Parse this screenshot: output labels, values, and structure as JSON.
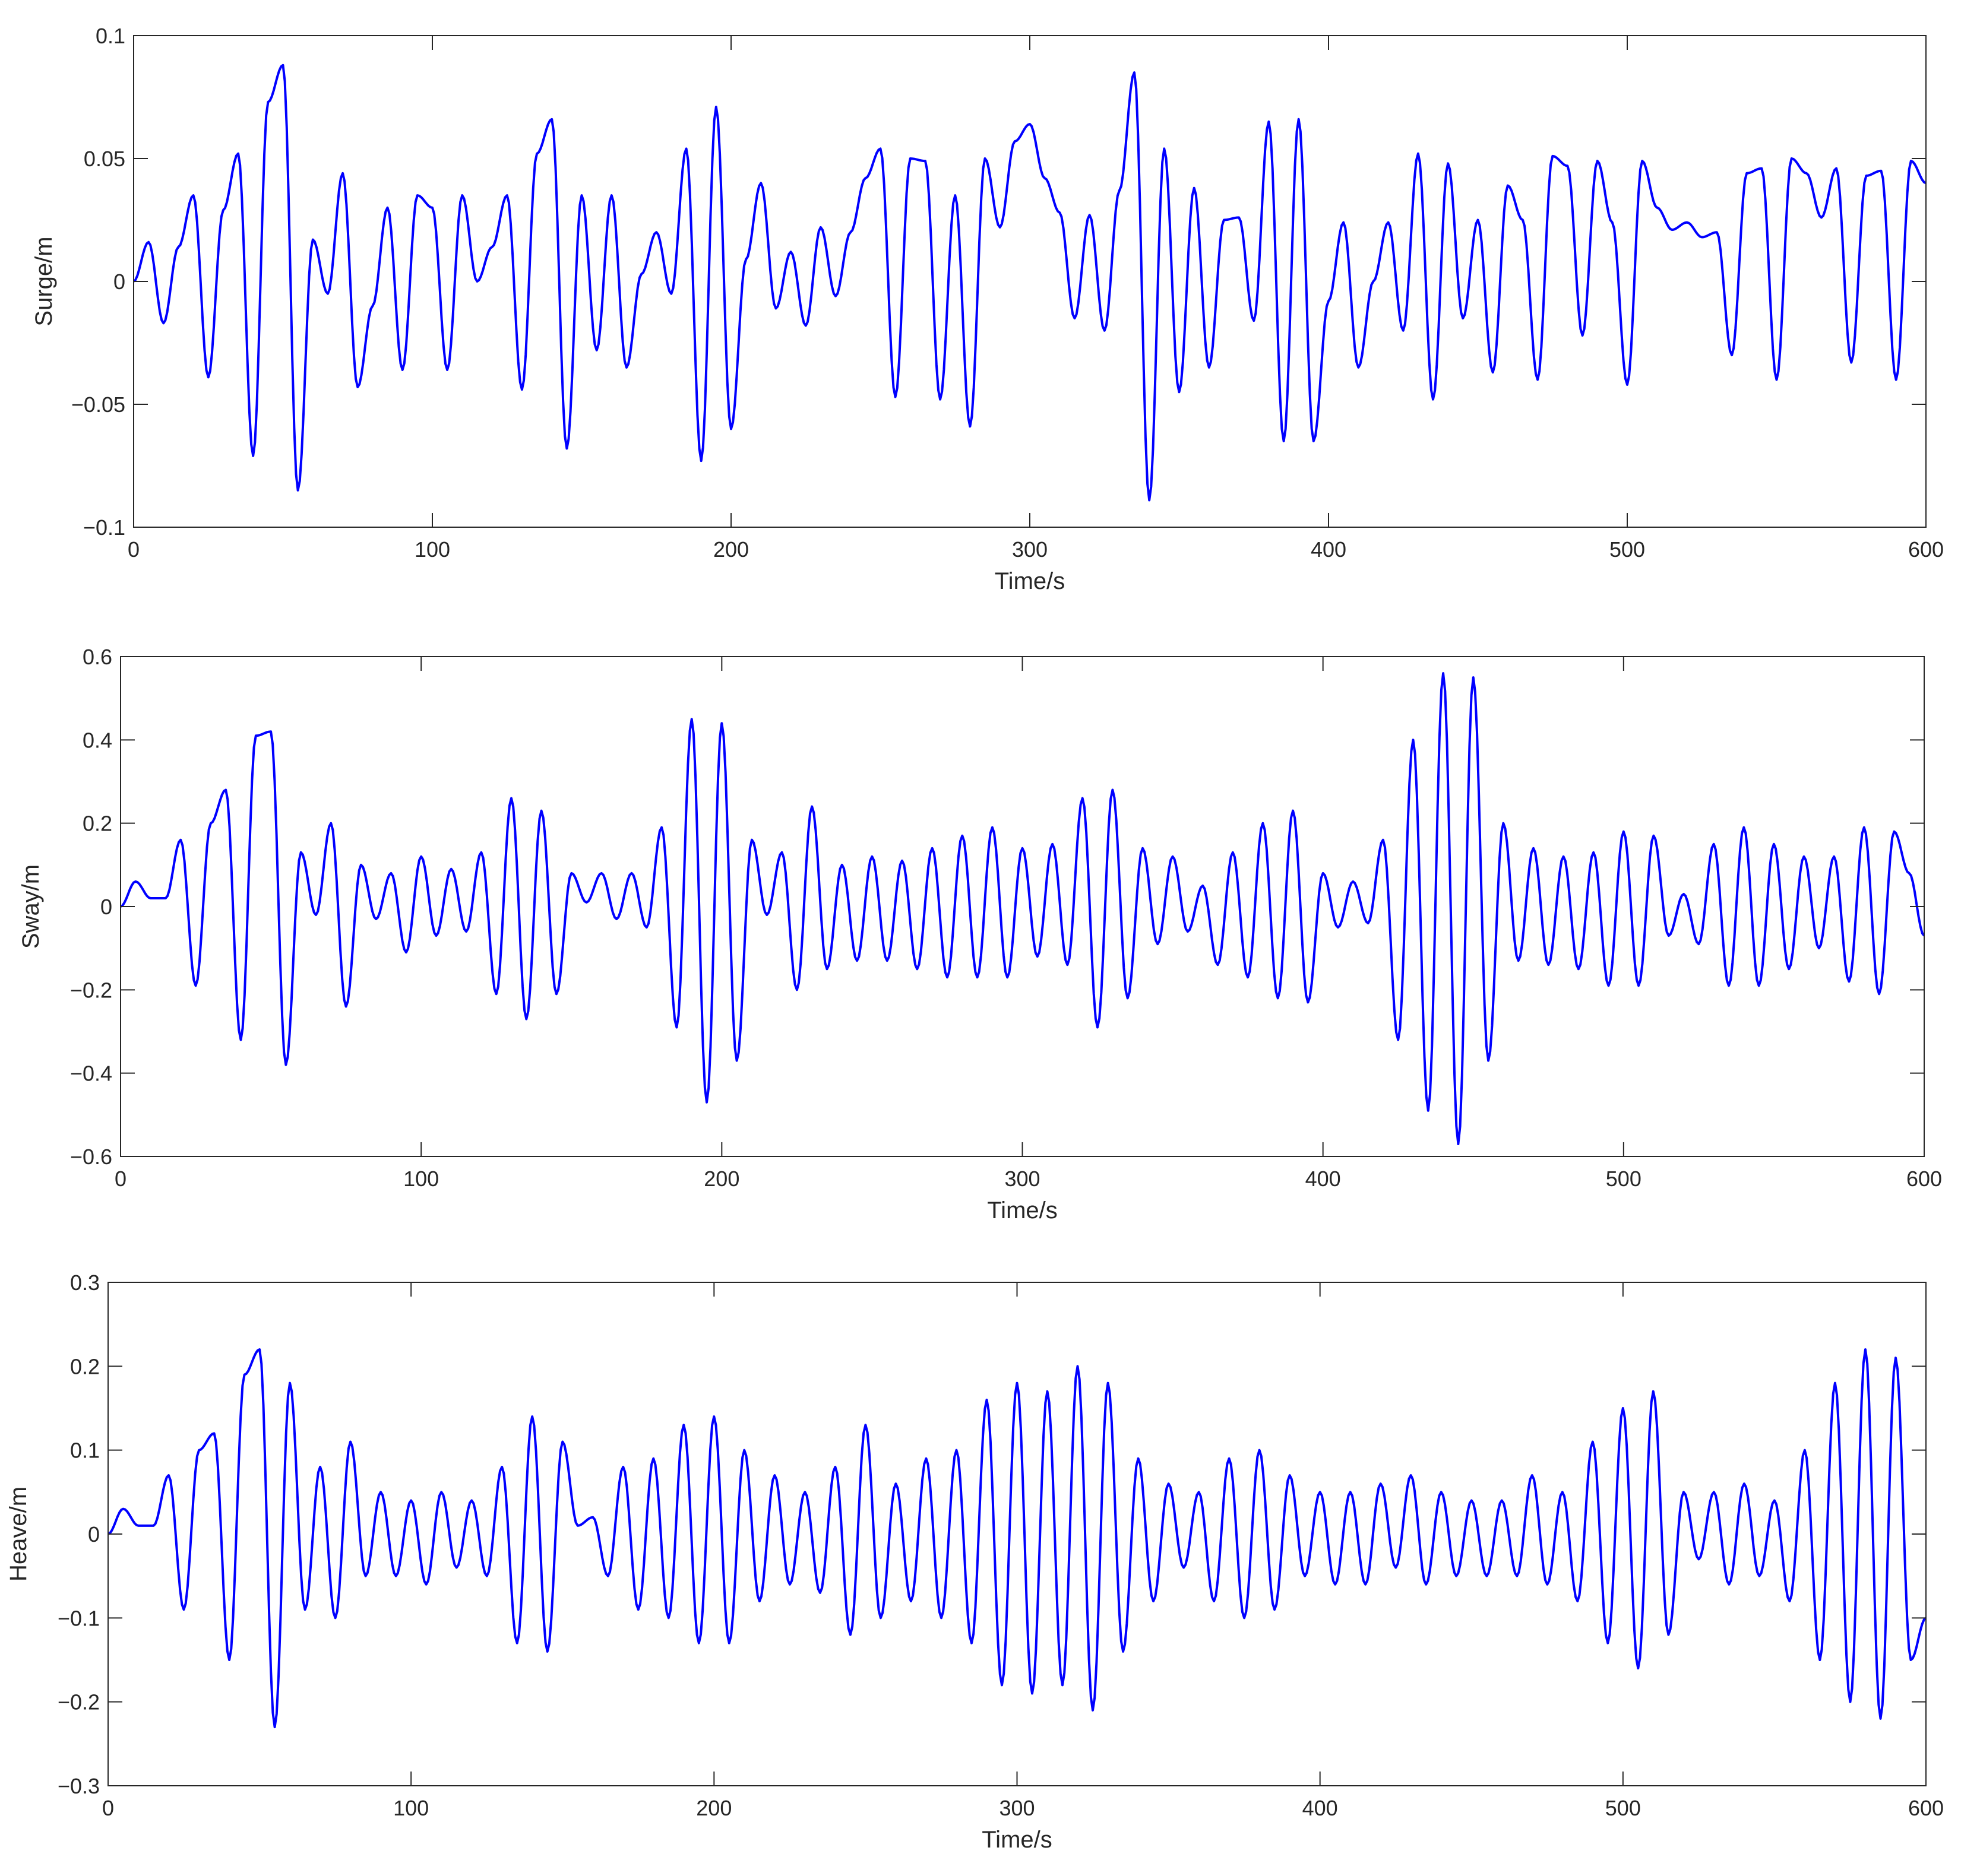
{
  "chart_data": [
    {
      "type": "line",
      "panel": "surge",
      "title": "",
      "xlabel": "Time/s",
      "ylabel": "Surge/m",
      "xlim": [
        0,
        600
      ],
      "ylim": [
        -0.1,
        0.1
      ],
      "xticks": [
        0,
        100,
        200,
        300,
        400,
        500,
        600
      ],
      "xtick_labels": [
        "0",
        "100",
        "200",
        "300",
        "400",
        "500",
        "600"
      ],
      "yticks": [
        -0.1,
        -0.05,
        0,
        0.05,
        0.1
      ],
      "ytick_labels": [
        "−0.1",
        "−0.05",
        "0",
        "0.05",
        "0.1"
      ],
      "grid": false,
      "line_color": "#0000ff",
      "series": [
        {
          "x": [
            0,
            5,
            10,
            15,
            20,
            25,
            30,
            35,
            40,
            45,
            50,
            55,
            60,
            65,
            70,
            75,
            80,
            85,
            90,
            95,
            100,
            105,
            110,
            115,
            120,
            125,
            130,
            135,
            140,
            145,
            150,
            155,
            160,
            165,
            170,
            175,
            180,
            185,
            190,
            195,
            200,
            205,
            210,
            215,
            220,
            225,
            230,
            235,
            240,
            245,
            250,
            255,
            260,
            265,
            270,
            275,
            280,
            285,
            290,
            295,
            300,
            305,
            310,
            315,
            320,
            325,
            330,
            335,
            340,
            345,
            350,
            355,
            360,
            365,
            370,
            375,
            380,
            385,
            390,
            395,
            400,
            405,
            410,
            415,
            420,
            425,
            430,
            435,
            440,
            445,
            450,
            455,
            460,
            465,
            470,
            475,
            480,
            485,
            490,
            495,
            500,
            505,
            510,
            515,
            520,
            525,
            530,
            535,
            540,
            545,
            550,
            555,
            560,
            565,
            570,
            575,
            580,
            585,
            590,
            595,
            600
          ],
          "values": [
            0.0,
            0.016,
            -0.017,
            0.014,
            0.035,
            -0.039,
            0.029,
            0.052,
            -0.071,
            0.073,
            0.088,
            -0.085,
            0.017,
            -0.005,
            0.044,
            -0.043,
            -0.01,
            0.03,
            -0.036,
            0.035,
            0.03,
            -0.036,
            0.035,
            0.0,
            0.014,
            0.035,
            -0.044,
            0.052,
            0.066,
            -0.068,
            0.035,
            -0.028,
            0.035,
            -0.035,
            0.003,
            0.02,
            -0.005,
            0.054,
            -0.073,
            0.071,
            -0.06,
            0.009,
            0.04,
            -0.011,
            0.012,
            -0.018,
            0.022,
            -0.006,
            0.02,
            0.042,
            0.054,
            -0.047,
            0.05,
            0.049,
            -0.048,
            0.035,
            -0.059,
            0.05,
            0.022,
            0.057,
            0.064,
            0.042,
            0.028,
            -0.015,
            0.027,
            -0.02,
            0.037,
            0.085,
            -0.089,
            0.054,
            -0.045,
            0.038,
            -0.035,
            0.025,
            0.026,
            -0.016,
            0.065,
            -0.065,
            0.066,
            -0.065,
            -0.008,
            0.024,
            -0.035,
            0.0,
            0.024,
            -0.02,
            0.052,
            -0.048,
            0.048,
            -0.015,
            0.025,
            -0.037,
            0.039,
            0.025,
            -0.04,
            0.051,
            0.047,
            -0.022,
            0.049,
            0.024,
            -0.042,
            0.049,
            0.03,
            0.021,
            0.024,
            0.018,
            0.02,
            -0.03,
            0.044,
            0.046,
            -0.04,
            0.05,
            0.044,
            0.026,
            0.046,
            -0.033,
            0.043,
            0.045,
            -0.04,
            0.049,
            0.04
          ]
        }
      ]
    },
    {
      "type": "line",
      "panel": "sway",
      "title": "",
      "xlabel": "Time/s",
      "ylabel": "Sway/m",
      "xlim": [
        0,
        600
      ],
      "ylim": [
        -0.6,
        0.6
      ],
      "xticks": [
        0,
        100,
        200,
        300,
        400,
        500,
        600
      ],
      "xtick_labels": [
        "0",
        "100",
        "200",
        "300",
        "400",
        "500",
        "600"
      ],
      "yticks": [
        -0.6,
        -0.4,
        -0.2,
        0,
        0.2,
        0.4,
        0.6
      ],
      "ytick_labels": [
        "−0.6",
        "−0.4",
        "−0.2",
        "0",
        "0.2",
        "0.4",
        "0.6"
      ],
      "grid": false,
      "line_color": "#0000ff",
      "series": [
        {
          "x": [
            0,
            5,
            10,
            15,
            20,
            25,
            30,
            35,
            40,
            45,
            50,
            55,
            60,
            65,
            70,
            75,
            80,
            85,
            90,
            95,
            100,
            105,
            110,
            115,
            120,
            125,
            130,
            135,
            140,
            145,
            150,
            155,
            160,
            165,
            170,
            175,
            180,
            185,
            190,
            195,
            200,
            205,
            210,
            215,
            220,
            225,
            230,
            235,
            240,
            245,
            250,
            255,
            260,
            265,
            270,
            275,
            280,
            285,
            290,
            295,
            300,
            305,
            310,
            315,
            320,
            325,
            330,
            335,
            340,
            345,
            350,
            355,
            360,
            365,
            370,
            375,
            380,
            385,
            390,
            395,
            400,
            405,
            410,
            415,
            420,
            425,
            430,
            435,
            440,
            445,
            450,
            455,
            460,
            465,
            470,
            475,
            480,
            485,
            490,
            495,
            500,
            505,
            510,
            515,
            520,
            525,
            530,
            535,
            540,
            545,
            550,
            555,
            560,
            565,
            570,
            575,
            580,
            585,
            590,
            595,
            600
          ],
          "values": [
            0.0,
            0.06,
            0.02,
            0.02,
            0.16,
            -0.19,
            0.2,
            0.28,
            -0.32,
            0.41,
            0.42,
            -0.38,
            0.13,
            -0.02,
            0.2,
            -0.24,
            0.1,
            -0.03,
            0.08,
            -0.11,
            0.12,
            -0.07,
            0.09,
            -0.06,
            0.13,
            -0.21,
            0.26,
            -0.27,
            0.23,
            -0.21,
            0.08,
            0.01,
            0.08,
            -0.03,
            0.08,
            -0.05,
            0.19,
            -0.29,
            0.45,
            -0.47,
            0.44,
            -0.37,
            0.16,
            -0.02,
            0.13,
            -0.2,
            0.24,
            -0.15,
            0.1,
            -0.13,
            0.12,
            -0.13,
            0.11,
            -0.15,
            0.14,
            -0.17,
            0.17,
            -0.17,
            0.19,
            -0.17,
            0.14,
            -0.12,
            0.15,
            -0.14,
            0.26,
            -0.29,
            0.28,
            -0.22,
            0.14,
            -0.09,
            0.12,
            -0.06,
            0.05,
            -0.14,
            0.13,
            -0.17,
            0.2,
            -0.22,
            0.23,
            -0.23,
            0.08,
            -0.05,
            0.06,
            -0.04,
            0.16,
            -0.32,
            0.4,
            -0.49,
            0.56,
            -0.57,
            0.55,
            -0.37,
            0.2,
            -0.13,
            0.14,
            -0.14,
            0.12,
            -0.15,
            0.13,
            -0.19,
            0.18,
            -0.19,
            0.17,
            -0.07,
            0.03,
            -0.09,
            0.15,
            -0.19,
            0.19,
            -0.19,
            0.15,
            -0.15,
            0.12,
            -0.1,
            0.12,
            -0.18,
            0.19,
            -0.21,
            0.18,
            0.08,
            -0.07
          ]
        }
      ]
    },
    {
      "type": "line",
      "panel": "heave",
      "title": "",
      "xlabel": "Time/s",
      "ylabel": "Heave/m",
      "xlim": [
        0,
        600
      ],
      "ylim": [
        -0.3,
        0.3
      ],
      "xticks": [
        0,
        100,
        200,
        300,
        400,
        500,
        600
      ],
      "xtick_labels": [
        "0",
        "100",
        "200",
        "300",
        "400",
        "500",
        "600"
      ],
      "yticks": [
        -0.3,
        -0.2,
        -0.1,
        0,
        0.1,
        0.2,
        0.3
      ],
      "ytick_labels": [
        "−0.3",
        "−0.2",
        "−0.1",
        "0",
        "0.1",
        "0.2",
        "0.3"
      ],
      "grid": false,
      "line_color": "#0000ff",
      "series": [
        {
          "x": [
            0,
            5,
            10,
            15,
            20,
            25,
            30,
            35,
            40,
            45,
            50,
            55,
            60,
            65,
            70,
            75,
            80,
            85,
            90,
            95,
            100,
            105,
            110,
            115,
            120,
            125,
            130,
            135,
            140,
            145,
            150,
            155,
            160,
            165,
            170,
            175,
            180,
            185,
            190,
            195,
            200,
            205,
            210,
            215,
            220,
            225,
            230,
            235,
            240,
            245,
            250,
            255,
            260,
            265,
            270,
            275,
            280,
            285,
            290,
            295,
            300,
            305,
            310,
            315,
            320,
            325,
            330,
            335,
            340,
            345,
            350,
            355,
            360,
            365,
            370,
            375,
            380,
            385,
            390,
            395,
            400,
            405,
            410,
            415,
            420,
            425,
            430,
            435,
            440,
            445,
            450,
            455,
            460,
            465,
            470,
            475,
            480,
            485,
            490,
            495,
            500,
            505,
            510,
            515,
            520,
            525,
            530,
            535,
            540,
            545,
            550,
            555,
            560,
            565,
            570,
            575,
            580,
            585,
            590,
            595,
            600
          ],
          "values": [
            0.0,
            0.03,
            0.01,
            0.01,
            0.07,
            -0.09,
            0.1,
            0.12,
            -0.15,
            0.19,
            0.22,
            -0.23,
            0.18,
            -0.09,
            0.08,
            -0.1,
            0.11,
            -0.05,
            0.05,
            -0.05,
            0.04,
            -0.06,
            0.05,
            -0.04,
            0.04,
            -0.05,
            0.08,
            -0.13,
            0.14,
            -0.14,
            0.11,
            0.01,
            0.02,
            -0.05,
            0.08,
            -0.09,
            0.09,
            -0.1,
            0.13,
            -0.13,
            0.14,
            -0.13,
            0.1,
            -0.08,
            0.07,
            -0.06,
            0.05,
            -0.07,
            0.08,
            -0.12,
            0.13,
            -0.1,
            0.06,
            -0.08,
            0.09,
            -0.1,
            0.1,
            -0.13,
            0.16,
            -0.18,
            0.18,
            -0.19,
            0.17,
            -0.18,
            0.2,
            -0.21,
            0.18,
            -0.14,
            0.09,
            -0.08,
            0.06,
            -0.04,
            0.05,
            -0.08,
            0.09,
            -0.1,
            0.1,
            -0.09,
            0.07,
            -0.05,
            0.05,
            -0.06,
            0.05,
            -0.06,
            0.06,
            -0.04,
            0.07,
            -0.06,
            0.05,
            -0.05,
            0.04,
            -0.05,
            0.04,
            -0.05,
            0.07,
            -0.06,
            0.05,
            -0.08,
            0.11,
            -0.13,
            0.15,
            -0.16,
            0.17,
            -0.12,
            0.05,
            -0.03,
            0.05,
            -0.06,
            0.06,
            -0.05,
            0.04,
            -0.08,
            0.1,
            -0.15,
            0.18,
            -0.2,
            0.22,
            -0.22,
            0.21,
            -0.15,
            -0.1
          ]
        }
      ]
    }
  ]
}
